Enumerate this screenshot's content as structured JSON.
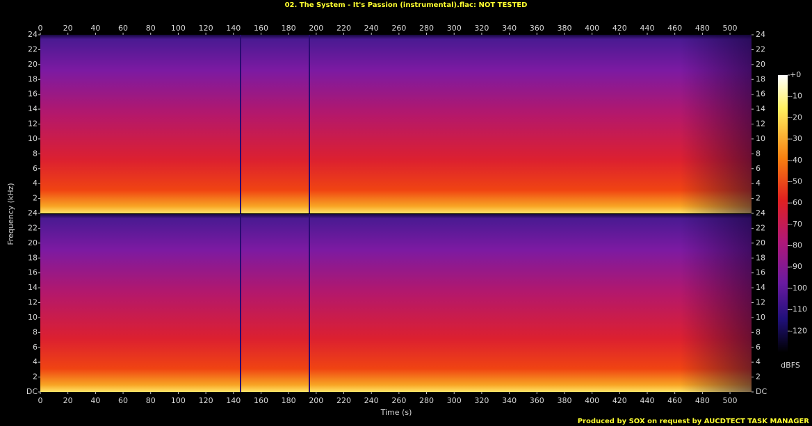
{
  "chart_data": {
    "type": "spectrogram",
    "title": "02. The System - It's Passion (instrumental).flac: NOT TESTED",
    "x_label": "Time (s)",
    "y_label": "Frequency (kHz)",
    "colorbar_label": "dBFS",
    "footer": "Produced by SOX on request by AUCDTECT TASK MANAGER",
    "xlim": [
      0,
      515.6
    ],
    "xticks": [
      0,
      20,
      40,
      60,
      80,
      100,
      120,
      140,
      160,
      180,
      200,
      220,
      240,
      260,
      280,
      300,
      320,
      340,
      360,
      380,
      400,
      420,
      440,
      460,
      480,
      500
    ],
    "panels": [
      {
        "ylim": [
          0,
          24
        ],
        "yticks": [
          2,
          4,
          6,
          8,
          10,
          12,
          14,
          16,
          18,
          20,
          22,
          24
        ]
      },
      {
        "ylim": [
          0,
          24
        ],
        "yticks": [
          {
            "value": 0,
            "label": "DC"
          },
          2,
          4,
          6,
          8,
          10,
          12,
          14,
          16,
          18,
          20,
          22,
          24
        ]
      }
    ],
    "zlim": [
      -130,
      0
    ],
    "zticks": [
      {
        "value": 0,
        "label": "+0"
      },
      -10,
      -20,
      -30,
      -40,
      -50,
      -60,
      -70,
      -80,
      -90,
      -100,
      -110,
      -120
    ]
  }
}
